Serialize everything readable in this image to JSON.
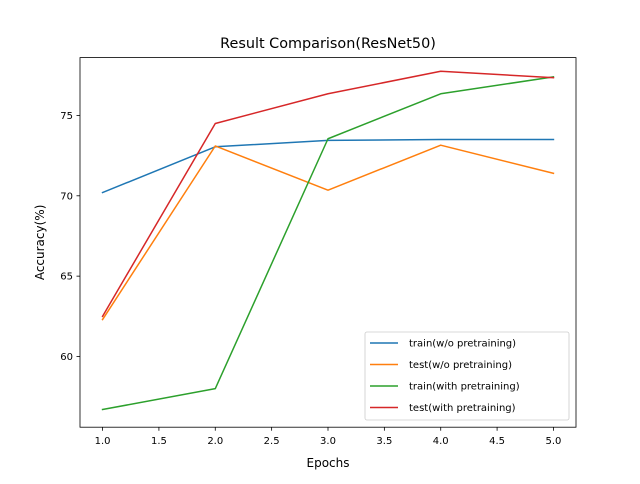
{
  "chart_data": {
    "type": "line",
    "title": "Result Comparison(ResNet50)",
    "xlabel": "Epochs",
    "ylabel": "Accuracy(%)",
    "xlim": [
      0.8,
      5.2
    ],
    "ylim": [
      55.6,
      78.6
    ],
    "xticks": [
      1.0,
      1.5,
      2.0,
      2.5,
      3.0,
      3.5,
      4.0,
      4.5,
      5.0
    ],
    "xtick_labels": [
      "1.0",
      "1.5",
      "2.0",
      "2.5",
      "3.0",
      "3.5",
      "4.0",
      "4.5",
      "5.0"
    ],
    "yticks": [
      60,
      65,
      70,
      75
    ],
    "ytick_labels": [
      "60",
      "65",
      "70",
      "75"
    ],
    "grid": false,
    "legend_position": "lower-right",
    "x": [
      1.0,
      2.0,
      3.0,
      4.0,
      5.0
    ],
    "series": [
      {
        "name": "train(w/o pretraining)",
        "color": "#1f77b4",
        "values": [
          70.2,
          73.05,
          73.45,
          73.5,
          73.5
        ]
      },
      {
        "name": "test(w/o pretraining)",
        "color": "#ff7f0e",
        "values": [
          62.3,
          73.1,
          70.35,
          73.15,
          71.4
        ]
      },
      {
        "name": "train(with pretraining)",
        "color": "#2ca02c",
        "values": [
          56.7,
          58.0,
          73.55,
          76.35,
          77.4
        ]
      },
      {
        "name": "test(with pretraining)",
        "color": "#d62728",
        "values": [
          62.5,
          74.5,
          76.35,
          77.75,
          77.35
        ]
      }
    ]
  }
}
